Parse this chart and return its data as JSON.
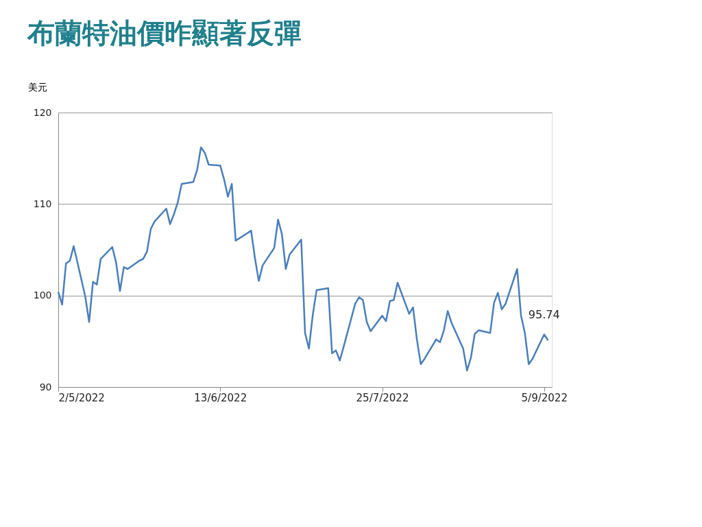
{
  "chart_data": {
    "type": "line",
    "title": "布蘭特油價昨顯著反彈",
    "ylabel": "美元",
    "x": [
      "2022-05-02",
      "2022-05-03",
      "2022-05-04",
      "2022-05-05",
      "2022-05-06",
      "2022-05-09",
      "2022-05-10",
      "2022-05-11",
      "2022-05-12",
      "2022-05-13",
      "2022-05-16",
      "2022-05-17",
      "2022-05-18",
      "2022-05-19",
      "2022-05-20",
      "2022-05-23",
      "2022-05-24",
      "2022-05-25",
      "2022-05-26",
      "2022-05-27",
      "2022-05-30",
      "2022-05-31",
      "2022-06-01",
      "2022-06-02",
      "2022-06-03",
      "2022-06-06",
      "2022-06-07",
      "2022-06-08",
      "2022-06-09",
      "2022-06-10",
      "2022-06-13",
      "2022-06-14",
      "2022-06-15",
      "2022-06-16",
      "2022-06-17",
      "2022-06-20",
      "2022-06-21",
      "2022-06-22",
      "2022-06-23",
      "2022-06-24",
      "2022-06-27",
      "2022-06-28",
      "2022-06-29",
      "2022-06-30",
      "2022-07-01",
      "2022-07-04",
      "2022-07-05",
      "2022-07-06",
      "2022-07-07",
      "2022-07-08",
      "2022-07-11",
      "2022-07-12",
      "2022-07-13",
      "2022-07-14",
      "2022-07-15",
      "2022-07-18",
      "2022-07-19",
      "2022-07-20",
      "2022-07-21",
      "2022-07-22",
      "2022-07-25",
      "2022-07-26",
      "2022-07-27",
      "2022-07-28",
      "2022-07-29",
      "2022-08-01",
      "2022-08-02",
      "2022-08-03",
      "2022-08-04",
      "2022-08-05",
      "2022-08-08",
      "2022-08-09",
      "2022-08-10",
      "2022-08-11",
      "2022-08-12",
      "2022-08-15",
      "2022-08-16",
      "2022-08-17",
      "2022-08-18",
      "2022-08-19",
      "2022-08-22",
      "2022-08-23",
      "2022-08-24",
      "2022-08-25",
      "2022-08-26",
      "2022-08-29",
      "2022-08-30",
      "2022-08-31",
      "2022-09-01",
      "2022-09-02",
      "2022-09-05",
      "2022-09-06"
    ],
    "series": [
      {
        "color": "#4a7ebb",
        "values": [
          100.4,
          99.0,
          103.5,
          103.8,
          105.4,
          99.9,
          97.1,
          101.5,
          101.2,
          104.0,
          105.3,
          103.6,
          100.5,
          103.1,
          102.9,
          103.8,
          104.0,
          104.8,
          107.3,
          108.1,
          109.5,
          107.8,
          108.9,
          110.2,
          112.2,
          112.4,
          113.7,
          116.2,
          115.6,
          114.3,
          114.2,
          112.7,
          110.8,
          112.2,
          106.0,
          106.8,
          107.1,
          104.1,
          101.6,
          103.3,
          105.2,
          108.3,
          106.7,
          102.9,
          104.5,
          106.1,
          95.9,
          94.2,
          97.9,
          100.6,
          100.8,
          93.7,
          94.0,
          92.9,
          94.4,
          99.1,
          99.8,
          99.5,
          97.1,
          96.1,
          97.8,
          97.2,
          99.4,
          99.5,
          101.4,
          98.0,
          98.7,
          95.2,
          92.5,
          93.1,
          95.2,
          94.9,
          96.2,
          98.3,
          97.0,
          94.2,
          91.8,
          93.2,
          95.8,
          96.2,
          95.9,
          99.2,
          100.3,
          98.5,
          99.1,
          102.9,
          97.8,
          95.9,
          92.5,
          93.1,
          95.74,
          95.1
        ]
      }
    ],
    "xlim": [
      "2022-05-02",
      "2022-09-07"
    ],
    "xticks": [
      {
        "value": "2022-05-02",
        "label": "2/5/2022"
      },
      {
        "value": "2022-06-13",
        "label": "13/6/2022"
      },
      {
        "value": "2022-07-25",
        "label": "25/7/2022"
      },
      {
        "value": "2022-09-05",
        "label": "5/9/2022"
      }
    ],
    "ylim": [
      90,
      120
    ],
    "yticks": [
      90,
      100,
      110,
      120
    ],
    "grid": "y",
    "marker": "none",
    "line_style": "solid",
    "annotations": [
      {
        "text": "95.74",
        "x": "2022-09-05",
        "y": 95.74
      }
    ]
  }
}
